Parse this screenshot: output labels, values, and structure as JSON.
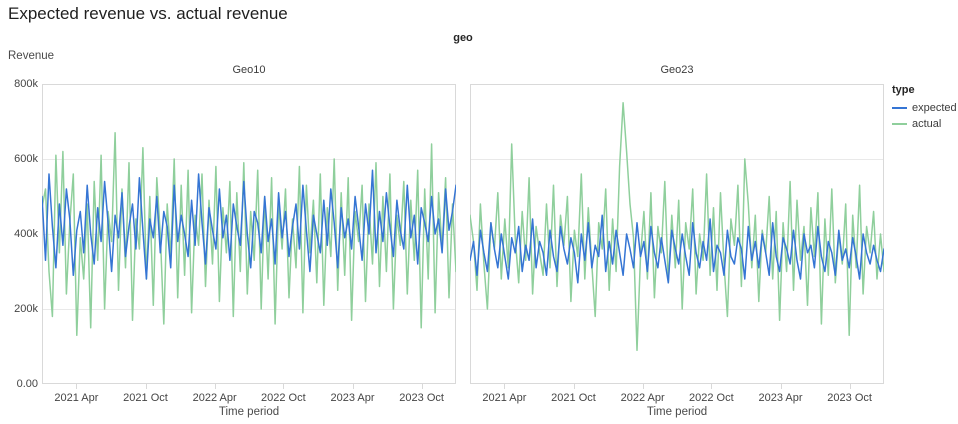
{
  "page": {
    "title": "Expected revenue vs. actual revenue"
  },
  "chart_data": {
    "type": "line",
    "title": "Expected revenue vs. actual revenue",
    "facet_header": "geo",
    "x": {
      "label": "Time period",
      "tick_labels": [
        "2021 Apr",
        "2021 Oct",
        "2022 Apr",
        "2022 Oct",
        "2023 Apr",
        "2023 Oct"
      ],
      "tick_positions": [
        0.083,
        0.25,
        0.417,
        0.583,
        0.75,
        0.917
      ],
      "range_note": "weekly points from 2021 Jan to 2023 Dec"
    },
    "y": {
      "label": "Revenue",
      "unit": "thousands",
      "ylim": [
        0,
        800
      ],
      "ticks": [
        0,
        200,
        400,
        600,
        800
      ],
      "tick_labels": [
        "0.00",
        "200k",
        "400k",
        "600k",
        "800k"
      ],
      "grid": true
    },
    "legend": {
      "title": "type",
      "position": "right",
      "entries": [
        {
          "label": "expected",
          "color": "#3575d4"
        },
        {
          "label": "actual",
          "color": "#8fcf9c"
        }
      ]
    },
    "facets": [
      {
        "label": "Geo10",
        "series": [
          {
            "name": "expected",
            "values": [
              500,
              330,
              560,
              420,
              310,
              480,
              370,
              520,
              440,
              290,
              410,
              460,
              350,
              530,
              400,
              320,
              470,
              380,
              540,
              430,
              300,
              450,
              390,
              510,
              340,
              420,
              480,
              360,
              550,
              410,
              280,
              440,
              390,
              500,
              350,
              460,
              420,
              310,
              530,
              380,
              450,
              400,
              340,
              490,
              370,
              560,
              430,
              320,
              470,
              410,
              360,
              520,
              390,
              450,
              330,
              480,
              420,
              370,
              540,
              400,
              310,
              460,
              430,
              350,
              500,
              380,
              440,
              320,
              510,
              390,
              460,
              340,
              420,
              480,
              360,
              530,
              410,
              300,
              450,
              400,
              350,
              490,
              370,
              520,
              430,
              310,
              470,
              390,
              440,
              360,
              500,
              420,
              330,
              480,
              400,
              570,
              350,
              460,
              380,
              510,
              420,
              340,
              490,
              410,
              360,
              530,
              390,
              450,
              320,
              470,
              430,
              380,
              500,
              400,
              440,
              350,
              520,
              410,
              460,
              530
            ]
          },
          {
            "name": "actual",
            "values": [
              470,
              520,
              300,
              180,
              610,
              350,
              620,
              240,
              430,
              560,
              130,
              390,
              280,
              480,
              150,
              540,
              330,
              610,
              200,
              460,
              380,
              670,
              250,
              520,
              310,
              590,
              170,
              440,
              360,
              630,
              280,
              500,
              210,
              550,
              400,
              160,
              480,
              340,
              600,
              230,
              530,
              290,
              570,
              190,
              450,
              370,
              560,
              260,
              490,
              320,
              580,
              220,
              470,
              350,
              540,
              180,
              510,
              300,
              590,
              240,
              460,
              330,
              570,
              200,
              500,
              280,
              550,
              160,
              480,
              360,
              520,
              230,
              440,
              310,
              580,
              190,
              530,
              350,
              490,
              270,
              560,
              210,
              470,
              340,
              600,
              250,
              510,
              290,
              550,
              170,
              460,
              380,
              530,
              220,
              480,
              320,
              590,
              260,
              500,
              300,
              560,
              200,
              450,
              370,
              540,
              240,
              490,
              330,
              570,
              150,
              520,
              280,
              640,
              190,
              510,
              360,
              550,
              230,
              480,
              300
            ]
          }
        ]
      },
      {
        "label": "Geo23",
        "series": [
          {
            "name": "expected",
            "values": [
              330,
              380,
              290,
              410,
              350,
              300,
              430,
              360,
              310,
              400,
              340,
              280,
              390,
              350,
              420,
              300,
              370,
              330,
              440,
              310,
              380,
              350,
              290,
              410,
              340,
              300,
              420,
              360,
              320,
              390,
              350,
              270,
              400,
              330,
              430,
              310,
              370,
              340,
              450,
              300,
              380,
              320,
              410,
              350,
              290,
              400,
              360,
              310,
              430,
              340,
              380,
              300,
              420,
              350,
              310,
              390,
              330,
              270,
              410,
              360,
              320,
              400,
              340,
              290,
              430,
              350,
              310,
              380,
              330,
              440,
              300,
              370,
              350,
              290,
              410,
              340,
              320,
              390,
              360,
              280,
              420,
              330,
              380,
              310,
              400,
              350,
              290,
              430,
              340,
              300,
              390,
              360,
              320,
              410,
              330,
              280,
              400,
              350,
              370,
              310,
              420,
              340,
              300,
              380,
              350,
              290,
              410,
              330,
              360,
              310,
              390,
              340,
              280,
              400,
              350,
              320,
              370,
              330,
              300,
              360
            ]
          },
          {
            "name": "actual",
            "values": [
              450,
              380,
              250,
              480,
              320,
              200,
              430,
              360,
              510,
              280,
              440,
              310,
              640,
              390,
              270,
              460,
              330,
              550,
              240,
              420,
              350,
              290,
              480,
              310,
              530,
              260,
              450,
              370,
              500,
              220,
              410,
              340,
              560,
              280,
              470,
              320,
              180,
              430,
              360,
              520,
              250,
              440,
              300,
              580,
              750,
              620,
              480,
              390,
              90,
              340,
              460,
              280,
              510,
              230,
              420,
              350,
              540,
              270,
              450,
              310,
              490,
              200,
              430,
              360,
              520,
              240,
              400,
              330,
              560,
              290,
              470,
              250,
              510,
              320,
              180,
              440,
              370,
              530,
              260,
              600,
              480,
              310,
              450,
              220,
              410,
              350,
              500,
              280,
              460,
              170,
              430,
              300,
              540,
              250,
              490,
              330,
              420,
              210,
              470,
              340,
              510,
              160,
              440,
              290,
              520,
              270,
              400,
              320,
              480,
              130,
              450,
              310,
              530,
              240,
              420,
              350,
              460,
              280,
              400,
              300
            ]
          }
        ]
      }
    ],
    "style": {
      "grid_color": "#e9e9e9",
      "border_color": "#d9d9d9",
      "expected_color": "#3575d4",
      "actual_color": "#8fcf9c"
    }
  }
}
